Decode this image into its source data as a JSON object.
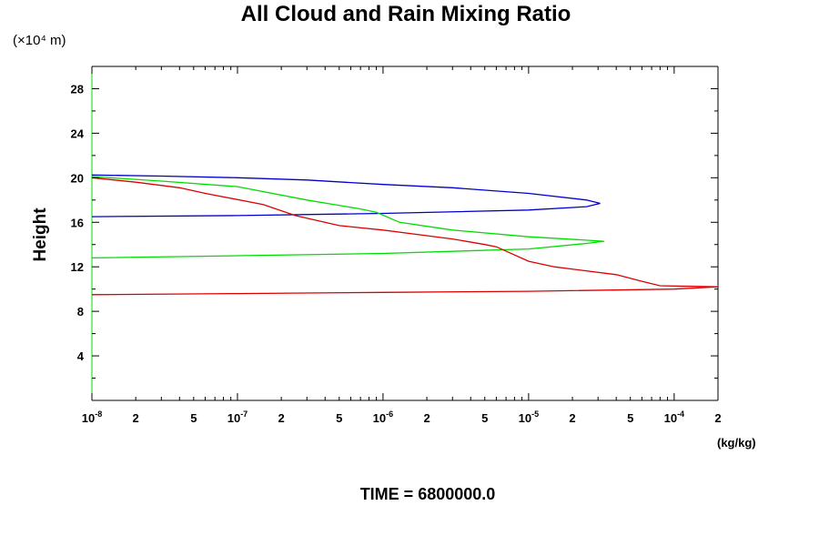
{
  "chart_data": {
    "type": "line",
    "title": "All Cloud and Rain Mixing Ratio",
    "ylabel": "Height",
    "yunit": "(×10⁴ m)",
    "xunit": "(kg/kg)",
    "footer": "TIME = 6800000.0",
    "xscale": "log",
    "xlim": [
      1e-08,
      0.0002
    ],
    "ylim": [
      0,
      30
    ],
    "grid": false,
    "legend": "none",
    "x_ticks": [
      {
        "value": 1e-08,
        "base": "10",
        "exp": "-8"
      },
      {
        "value": 2e-08,
        "base": "2",
        "exp": ""
      },
      {
        "value": 5e-08,
        "base": "5",
        "exp": ""
      },
      {
        "value": 1e-07,
        "base": "10",
        "exp": "-7"
      },
      {
        "value": 2e-07,
        "base": "2",
        "exp": ""
      },
      {
        "value": 5e-07,
        "base": "5",
        "exp": ""
      },
      {
        "value": 1e-06,
        "base": "10",
        "exp": "-6"
      },
      {
        "value": 2e-06,
        "base": "2",
        "exp": ""
      },
      {
        "value": 5e-06,
        "base": "5",
        "exp": ""
      },
      {
        "value": 1e-05,
        "base": "10",
        "exp": "-5"
      },
      {
        "value": 2e-05,
        "base": "2",
        "exp": ""
      },
      {
        "value": 5e-05,
        "base": "5",
        "exp": ""
      },
      {
        "value": 0.0001,
        "base": "10",
        "exp": "-4"
      },
      {
        "value": 0.0002,
        "base": "2",
        "exp": ""
      }
    ],
    "y_ticks": [
      {
        "value": 4,
        "label": "4"
      },
      {
        "value": 8,
        "label": "8"
      },
      {
        "value": 12,
        "label": "12"
      },
      {
        "value": 16,
        "label": "16"
      },
      {
        "value": 20,
        "label": "20"
      },
      {
        "value": 24,
        "label": "24"
      },
      {
        "value": 28,
        "label": "28"
      }
    ],
    "series": [
      {
        "color": "#0000cc",
        "points": [
          [
            1e-08,
            16.5
          ],
          [
            1e-07,
            16.6
          ],
          [
            1e-06,
            16.8
          ],
          [
            1e-05,
            17.1
          ],
          [
            2.5e-05,
            17.4
          ],
          [
            3.1e-05,
            17.7
          ],
          [
            2.5e-05,
            18.0
          ],
          [
            1e-05,
            18.6
          ],
          [
            3e-06,
            19.1
          ],
          [
            1e-06,
            19.4
          ],
          [
            3e-07,
            19.8
          ],
          [
            1e-07,
            20.0
          ],
          [
            3e-08,
            20.15
          ],
          [
            1e-08,
            20.25
          ]
        ]
      },
      {
        "color": "#00dd00",
        "points": [
          [
            1e-08,
            12.8
          ],
          [
            1e-07,
            13.0
          ],
          [
            1e-06,
            13.2
          ],
          [
            1e-05,
            13.6
          ],
          [
            2.5e-05,
            14.1
          ],
          [
            3.3e-05,
            14.3
          ],
          [
            1e-05,
            14.7
          ],
          [
            3e-06,
            15.3
          ],
          [
            1.3e-06,
            16.0
          ],
          [
            9e-07,
            16.9
          ],
          [
            7e-07,
            17.2
          ],
          [
            3e-07,
            18.0
          ],
          [
            1e-07,
            19.2
          ],
          [
            3e-08,
            19.7
          ],
          [
            1e-08,
            20.1
          ]
        ]
      },
      {
        "color": "#dd0000",
        "points": [
          [
            1e-08,
            9.5
          ],
          [
            1e-07,
            9.6
          ],
          [
            1e-06,
            9.7
          ],
          [
            1e-05,
            9.8
          ],
          [
            0.0001,
            10.0
          ],
          [
            0.0002,
            10.2
          ],
          [
            8e-05,
            10.3
          ],
          [
            6e-05,
            10.7
          ],
          [
            4e-05,
            11.3
          ],
          [
            1.5e-05,
            12.0
          ],
          [
            1e-05,
            12.5
          ],
          [
            6e-06,
            13.8
          ],
          [
            5e-06,
            14.0
          ],
          [
            3e-06,
            14.5
          ],
          [
            1e-06,
            15.3
          ],
          [
            5e-07,
            15.7
          ],
          [
            2.5e-07,
            16.6
          ],
          [
            1.5e-07,
            17.6
          ],
          [
            6e-08,
            18.6
          ],
          [
            4e-08,
            19.1
          ],
          [
            2e-08,
            19.6
          ],
          [
            1e-08,
            20.0
          ]
        ]
      }
    ]
  }
}
